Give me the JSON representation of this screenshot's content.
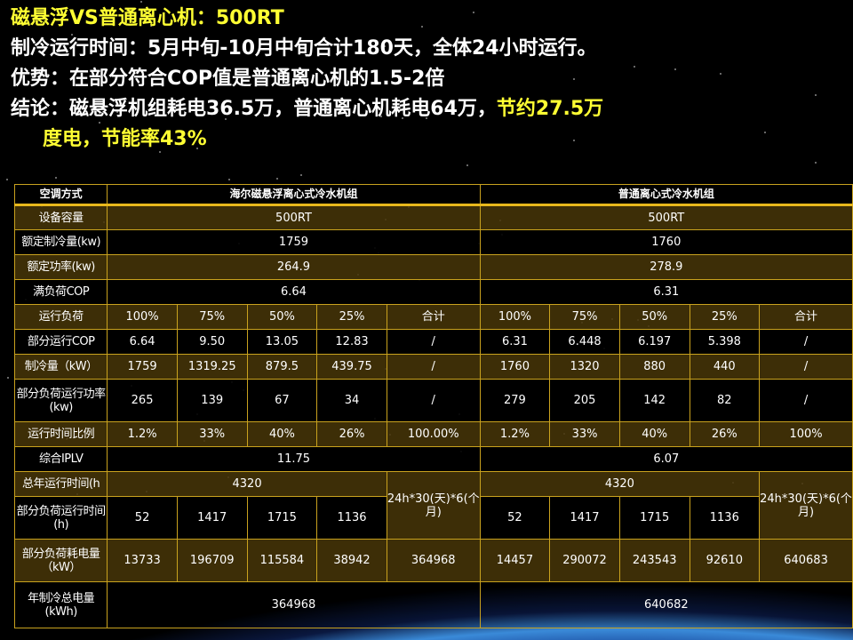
{
  "title": "磁悬浮VS普通离心机：500RT",
  "line2": "制冷运行时间：5月中旬-10月中旬合计180天，全体24小时运行。",
  "line3": "优势：在部分符合COP值是普通离心机的1.5-2倍",
  "line4_a": "结论：磁悬浮机组耗电36.5万，普通离心机耗电64万，",
  "line4_b": "节约27.5万",
  "line5_a": "度电，节能率43%",
  "colors": {
    "title": "#ffff33",
    "border": "#c9a21e",
    "row_alt": "#463408"
  },
  "table": {
    "header": [
      "空调方式",
      "海尔磁悬浮离心式冷水机组",
      "普通离心式冷水机组"
    ],
    "capacity": {
      "label": "设备容量",
      "a": "500RT",
      "b": "500RT"
    },
    "rated_cooling": {
      "label": "额定制冷量(kw)",
      "a": "1759",
      "b": "1760"
    },
    "rated_power": {
      "label": "额定功率(kw)",
      "a": "264.9",
      "b": "278.9"
    },
    "full_cop": {
      "label": "满负荷COP",
      "a": "6.64",
      "b": "6.31"
    },
    "rows": [
      {
        "label": "运行负荷",
        "cells": [
          "100%",
          "75%",
          "50%",
          "25%",
          "合计",
          "100%",
          "75%",
          "50%",
          "25%",
          "合计"
        ]
      },
      {
        "label": "部分运行COP",
        "cells": [
          "6.64",
          "9.50",
          "13.05",
          "12.83",
          "/",
          "6.31",
          "6.448",
          "6.197",
          "5.398",
          "/"
        ]
      },
      {
        "label": "制冷量（kW）",
        "cells": [
          "1759",
          "1319.25",
          "879.5",
          "439.75",
          "/",
          "1760",
          "1320",
          "880",
          "440",
          "/"
        ]
      },
      {
        "label": "部分负荷运行功率(kw)",
        "cells": [
          "265",
          "139",
          "67",
          "34",
          "/",
          "279",
          "205",
          "142",
          "82",
          "/"
        ]
      },
      {
        "label": "运行时间比例",
        "cells": [
          "1.2%",
          "33%",
          "40%",
          "26%",
          "100.00%",
          "1.2%",
          "33%",
          "40%",
          "26%",
          "100%"
        ]
      }
    ],
    "iplv": {
      "label": "综合IPLV",
      "a": "11.75",
      "b": "6.07"
    },
    "annual_hours": {
      "label": "总年运行时间(h",
      "a": "4320",
      "b": "4320",
      "note_a": "24h*30(天)*6(个月)",
      "note_b": "24h*30(天)*6(个月)"
    },
    "part_hours": {
      "label": "部分负荷运行时间(h)",
      "a": [
        "52",
        "1417",
        "1715",
        "1136"
      ],
      "b": [
        "52",
        "1417",
        "1715",
        "1136"
      ]
    },
    "part_energy": {
      "label": "部分负荷耗电量（kW）",
      "a": [
        "13733",
        "196709",
        "115584",
        "38942",
        "364968"
      ],
      "b": [
        "14457",
        "290072",
        "243543",
        "92610",
        "640683"
      ]
    },
    "annual_total": {
      "label": "年制冷总电量(kWh)",
      "a": "364968",
      "b": "640682"
    }
  }
}
